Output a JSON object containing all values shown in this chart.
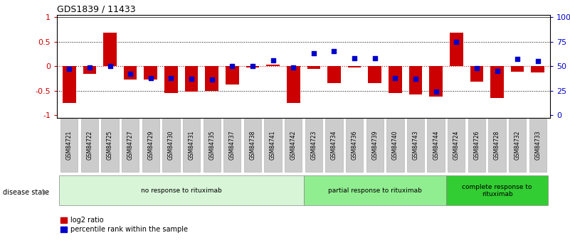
{
  "title": "GDS1839 / 11433",
  "samples": [
    "GSM84721",
    "GSM84722",
    "GSM84725",
    "GSM84727",
    "GSM84729",
    "GSM84730",
    "GSM84731",
    "GSM84735",
    "GSM84737",
    "GSM84738",
    "GSM84741",
    "GSM84742",
    "GSM84723",
    "GSM84734",
    "GSM84736",
    "GSM84739",
    "GSM84740",
    "GSM84743",
    "GSM84744",
    "GSM84724",
    "GSM84726",
    "GSM84728",
    "GSM84732",
    "GSM84733"
  ],
  "log2_ratio": [
    -0.75,
    -0.15,
    0.68,
    -0.28,
    -0.28,
    -0.55,
    -0.52,
    -0.5,
    -0.38,
    -0.03,
    0.03,
    -0.75,
    -0.05,
    -0.35,
    -0.02,
    -0.35,
    -0.55,
    -0.58,
    -0.62,
    0.68,
    -0.32,
    -0.65,
    -0.12,
    -0.13
  ],
  "percentile": [
    0.47,
    0.49,
    0.5,
    0.42,
    0.38,
    0.38,
    0.37,
    0.36,
    0.5,
    0.5,
    0.56,
    0.49,
    0.63,
    0.65,
    0.58,
    0.58,
    0.38,
    0.37,
    0.24,
    0.75,
    0.48,
    0.45,
    0.57,
    0.55
  ],
  "groups": [
    {
      "label": "no response to rituximab",
      "start": 0,
      "end": 12,
      "color": "#d8f5d8"
    },
    {
      "label": "partial response to rituximab",
      "start": 12,
      "end": 19,
      "color": "#90ee90"
    },
    {
      "label": "complete response to\nrituximab",
      "start": 19,
      "end": 24,
      "color": "#32cd32"
    }
  ],
  "bar_color": "#cc0000",
  "dot_color": "#0000cc",
  "y_left_label_color": "#cc0000",
  "y_right_label_color": "#0000cc",
  "ylim": [
    -1.05,
    1.05
  ],
  "yticks_left": [
    -1,
    -0.5,
    0,
    0.5,
    1
  ],
  "yticks_right_vals": [
    0,
    25,
    50,
    75,
    100
  ],
  "yticks_right_pos": [
    -1.0,
    -0.5,
    0.0,
    0.5,
    1.0
  ],
  "legend_items": [
    "log2 ratio",
    "percentile rank within the sample"
  ],
  "disease_state_label": "disease state",
  "bg_color": "#ffffff",
  "sample_box_color": "#cccccc",
  "sample_box_edge": "#aaaaaa"
}
